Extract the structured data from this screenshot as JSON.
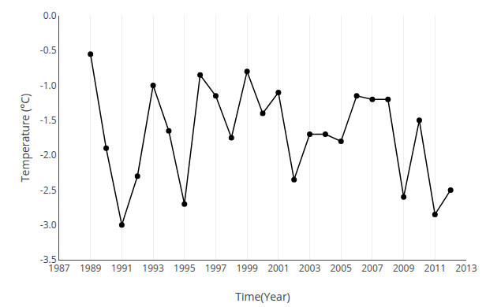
{
  "chart_data": {
    "type": "line",
    "x": [
      1989,
      1990,
      1991,
      1992,
      1993,
      1994,
      1995,
      1996,
      1997,
      1998,
      1999,
      2000,
      2001,
      2002,
      2003,
      2004,
      2005,
      2006,
      2007,
      2008,
      2009,
      2010,
      2011,
      2012
    ],
    "values": [
      -0.55,
      -1.9,
      -3.0,
      -2.3,
      -1.0,
      -1.65,
      -2.7,
      -0.85,
      -1.15,
      -1.75,
      -0.8,
      -1.4,
      -1.1,
      -2.35,
      -1.7,
      -1.7,
      -1.8,
      -1.15,
      -1.2,
      -1.2,
      -2.6,
      -1.5,
      -2.85,
      -2.5
    ],
    "xlim": [
      1987,
      2013
    ],
    "ylim": [
      -3.5,
      0.0
    ],
    "xticks": [
      1987,
      1989,
      1991,
      1993,
      1995,
      1997,
      1999,
      2001,
      2003,
      2005,
      2007,
      2009,
      2011,
      2013
    ],
    "yticks": [
      {
        "value": 0.0,
        "label": "0.0"
      },
      -0.5,
      {
        "value": -1.0,
        "label": "-1.0"
      },
      -1.5,
      {
        "value": -2.0,
        "label": "-2.0"
      },
      -2.5,
      {
        "value": -3.0,
        "label": "-3.0"
      },
      -3.5
    ],
    "xlabel": "Time(Year)",
    "ylabel": "Temperature (°C)",
    "color": "#000000",
    "marker": "circle",
    "grid": "x"
  }
}
